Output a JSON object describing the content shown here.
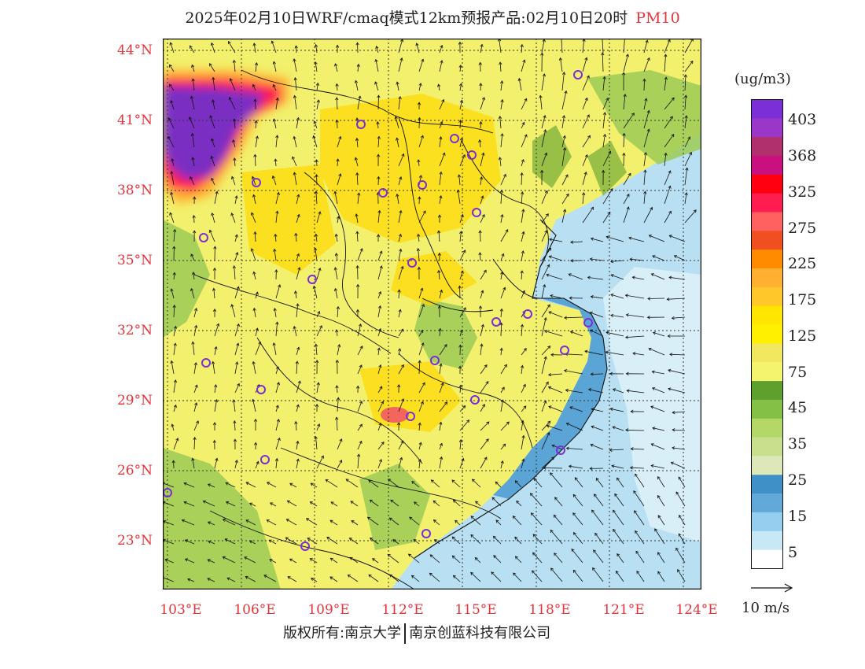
{
  "header": {
    "title": "2025年02月10日WRF/cmaq模式12km预报产品:02月10日20时",
    "pollutant": "PM10"
  },
  "map": {
    "lat_labels": [
      "44°N",
      "41°N",
      "38°N",
      "35°N",
      "32°N",
      "29°N",
      "26°N",
      "23°N"
    ],
    "lon_labels": [
      "103°E",
      "106°E",
      "109°E",
      "112°E",
      "115°E",
      "118°E",
      "121°E",
      "124°E"
    ],
    "colors": {
      "land_base": "#f2f06c",
      "high_pollution": "#7a2fc2",
      "sea": "#b8e0f2"
    }
  },
  "legend": {
    "unit": "(ug/m3)",
    "labels": [
      "403",
      "368",
      "325",
      "275",
      "225",
      "175",
      "125",
      "75",
      "45",
      "35",
      "25",
      "15",
      "5"
    ],
    "colors": [
      "#7b2fd6",
      "#9b37c8",
      "#b0306e",
      "#c8107e",
      "#ff0010",
      "#ff1d50",
      "#ff6060",
      "#f05020",
      "#ff8c00",
      "#ffb030",
      "#ffc82a",
      "#ffe600",
      "#fff000",
      "#f2e860",
      "#f4f46e",
      "#5ea02e",
      "#84c045",
      "#b4d867",
      "#c8e08e",
      "#dce8b8",
      "#4090c8",
      "#62a8d8",
      "#94cfef",
      "#c8e8f6",
      "#ffffff"
    ]
  },
  "wind": {
    "scale_label": "10 m/s"
  },
  "footer": {
    "left": "版权所有:南京大学",
    "right": "南京创蓝科技有限公司"
  }
}
